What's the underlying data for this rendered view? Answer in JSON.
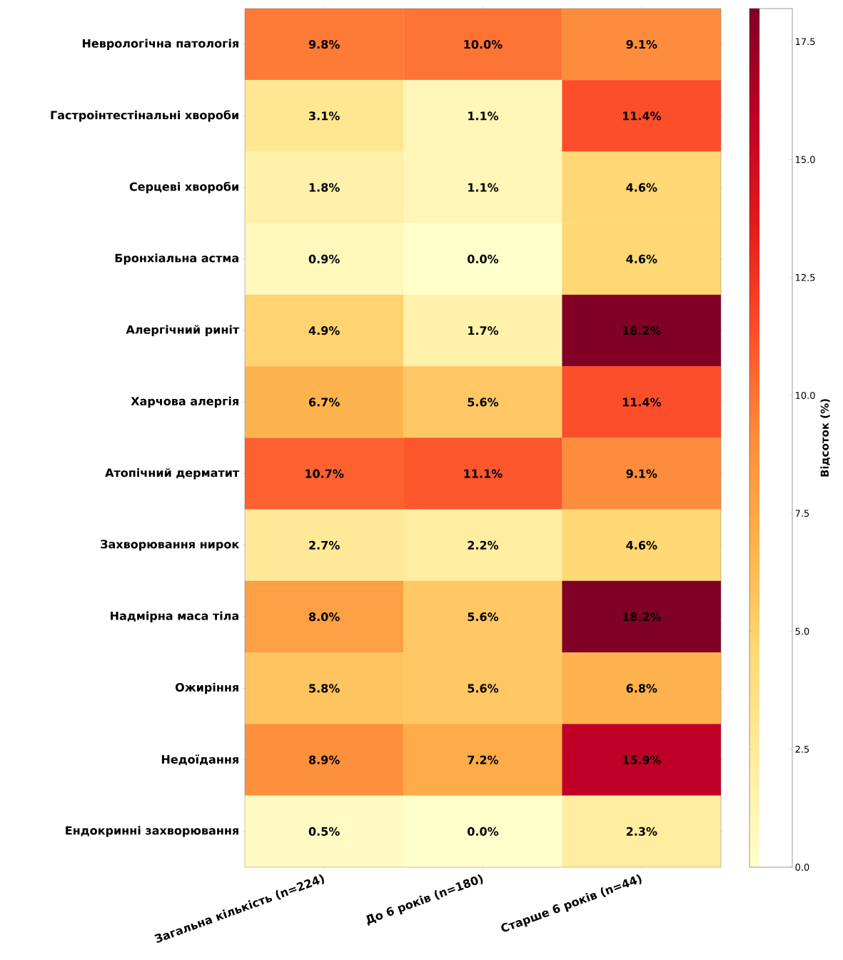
{
  "chart_data": {
    "type": "heatmap",
    "clabel": "Відсоток (%)",
    "categories": [
      "Загальна кількість (n=224)",
      "До 6 років (n=180)",
      "Старше 6 років (n=44)"
    ],
    "y_categories": [
      "Неврологічна патологія",
      "Гастроінтестінальні хвороби",
      "Серцеві хвороби",
      "Бронхіальна астма",
      "Алергічний риніт",
      "Харчова алергія",
      "Атопічний дерматит",
      "Захворювання нирок",
      "Надмірна маса тіла",
      "Ожиріння",
      "Недоїдання",
      "Ендокринні захворювання"
    ],
    "cells": [
      [
        9.8,
        10.0,
        9.1
      ],
      [
        3.1,
        1.1,
        11.4
      ],
      [
        1.8,
        1.1,
        4.6
      ],
      [
        0.9,
        0.0,
        4.6
      ],
      [
        4.9,
        1.7,
        18.2
      ],
      [
        6.7,
        5.6,
        11.4
      ],
      [
        10.7,
        11.1,
        9.1
      ],
      [
        2.7,
        2.2,
        4.6
      ],
      [
        8.0,
        5.6,
        18.2
      ],
      [
        5.8,
        5.6,
        6.8
      ],
      [
        8.9,
        7.2,
        15.9
      ],
      [
        0.5,
        0.0,
        2.3
      ]
    ],
    "cell_labels": [
      [
        "9.8%",
        "10.0%",
        "9.1%"
      ],
      [
        "3.1%",
        "1.1%",
        "11.4%"
      ],
      [
        "1.8%",
        "1.1%",
        "4.6%"
      ],
      [
        "0.9%",
        "0.0%",
        "4.6%"
      ],
      [
        "4.9%",
        "1.7%",
        "18.2%"
      ],
      [
        "6.7%",
        "5.6%",
        "11.4%"
      ],
      [
        "10.7%",
        "11.1%",
        "9.1%"
      ],
      [
        "2.7%",
        "2.2%",
        "4.6%"
      ],
      [
        "8.0%",
        "5.6%",
        "18.2%"
      ],
      [
        "5.8%",
        "5.6%",
        "6.8%"
      ],
      [
        "8.9%",
        "7.2%",
        "15.9%"
      ],
      [
        "0.5%",
        "0.0%",
        "2.3%"
      ]
    ],
    "clim": [
      0,
      18.2
    ],
    "cticks": [
      {
        "value": 0,
        "label": "0.0"
      },
      {
        "value": 2.5,
        "label": "2.5"
      },
      {
        "value": 5,
        "label": "5.0"
      },
      {
        "value": 7.5,
        "label": "7.5"
      },
      {
        "value": 10,
        "label": "10.0"
      },
      {
        "value": 12.5,
        "label": "12.5"
      },
      {
        "value": 15,
        "label": "15.0"
      },
      {
        "value": 17.5,
        "label": "17.5"
      }
    ]
  }
}
